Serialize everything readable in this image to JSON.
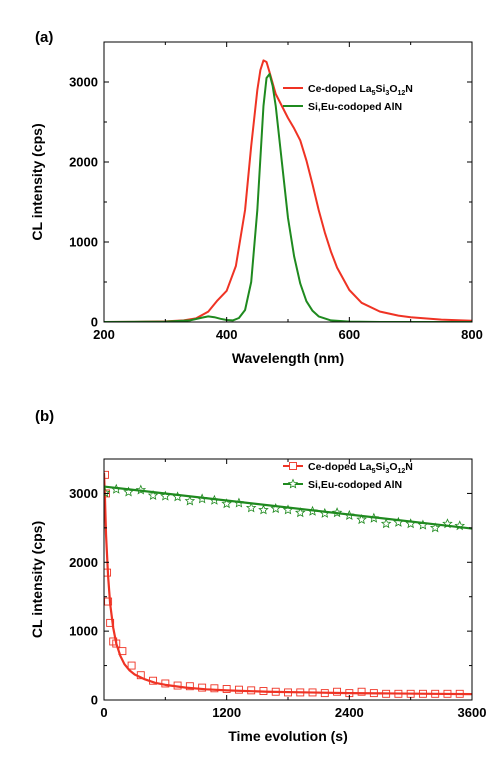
{
  "colors": {
    "red": "#ef3324",
    "green": "#1f8a1f",
    "axis": "#000000"
  },
  "chart_data": [
    {
      "id": "a",
      "panel_label": "(a)",
      "type": "line",
      "xlabel": "Wavelength (nm)",
      "ylabel": "CL intensity (cps)",
      "xlim": [
        200,
        800
      ],
      "ylim": [
        0,
        3500
      ],
      "xticks": [
        200,
        400,
        600,
        800
      ],
      "yticks": [
        0,
        1000,
        2000,
        3000
      ],
      "xtick_labels": [
        "200",
        "400",
        "600",
        "800"
      ],
      "ytick_labels": [
        "0",
        "1000",
        "2000",
        "3000"
      ],
      "grid": false,
      "legend_position": "top-right",
      "series": [
        {
          "name": "Ce-doped La5Si3O12N",
          "legend_parts": [
            {
              "text": "Ce-doped La",
              "sub": false
            },
            {
              "text": "5",
              "sub": true
            },
            {
              "text": "Si",
              "sub": false
            },
            {
              "text": "3",
              "sub": true
            },
            {
              "text": "O",
              "sub": false
            },
            {
              "text": "12",
              "sub": true
            },
            {
              "text": "N",
              "sub": false
            }
          ],
          "color": "red",
          "style": "line",
          "x": [
            200,
            250,
            300,
            330,
            350,
            370,
            385,
            400,
            415,
            430,
            440,
            450,
            455,
            460,
            465,
            470,
            480,
            490,
            500,
            510,
            520,
            530,
            540,
            550,
            560,
            570,
            580,
            600,
            620,
            650,
            680,
            700,
            750,
            800
          ],
          "y": [
            0,
            2,
            8,
            20,
            45,
            130,
            270,
            390,
            700,
            1400,
            2200,
            2900,
            3150,
            3270,
            3250,
            3120,
            2850,
            2700,
            2550,
            2420,
            2270,
            2020,
            1720,
            1400,
            1120,
            880,
            680,
            400,
            240,
            130,
            80,
            60,
            30,
            15
          ]
        },
        {
          "name": "Si,Eu-codoped AlN",
          "legend_parts": [
            {
              "text": "Si,Eu-codoped AlN",
              "sub": false
            }
          ],
          "color": "green",
          "style": "line",
          "x": [
            200,
            300,
            340,
            360,
            370,
            380,
            390,
            400,
            410,
            420,
            430,
            440,
            450,
            460,
            465,
            470,
            475,
            480,
            490,
            500,
            510,
            520,
            530,
            540,
            550,
            570,
            600,
            650,
            800
          ],
          "y": [
            0,
            5,
            20,
            55,
            70,
            60,
            40,
            25,
            20,
            50,
            150,
            500,
            1400,
            2700,
            3050,
            3100,
            2950,
            2700,
            2000,
            1300,
            820,
            480,
            260,
            140,
            70,
            20,
            5,
            0,
            0
          ]
        }
      ]
    },
    {
      "id": "b",
      "panel_label": "(b)",
      "type": "scatter",
      "xlabel": "Time evolution (s)",
      "ylabel": "CL intensity (cps)",
      "xlim": [
        0,
        3600
      ],
      "ylim": [
        0,
        3500
      ],
      "xticks": [
        0,
        1200,
        2400,
        3600
      ],
      "yticks": [
        0,
        1000,
        2000,
        3000
      ],
      "xtick_labels": [
        "0",
        "1200",
        "2400",
        "3600"
      ],
      "ytick_labels": [
        "0",
        "1000",
        "2000",
        "3000"
      ],
      "grid": false,
      "legend_position": "top-right",
      "series": [
        {
          "name": "Ce-doped La5Si3O12N",
          "legend_parts": [
            {
              "text": "Ce-doped La",
              "sub": false
            },
            {
              "text": "5",
              "sub": true
            },
            {
              "text": "Si",
              "sub": false
            },
            {
              "text": "3",
              "sub": true
            },
            {
              "text": "O",
              "sub": false
            },
            {
              "text": "12",
              "sub": true
            },
            {
              "text": "N",
              "sub": false
            }
          ],
          "color": "red",
          "marker": "square",
          "points_x": [
            10,
            20,
            30,
            40,
            60,
            90,
            120,
            180,
            270,
            360,
            480,
            600,
            720,
            840,
            960,
            1080,
            1200,
            1320,
            1440,
            1560,
            1680,
            1800,
            1920,
            2040,
            2160,
            2280,
            2400,
            2520,
            2640,
            2760,
            2880,
            3000,
            3120,
            3240,
            3360,
            3480
          ],
          "points_y": [
            3270,
            3000,
            1850,
            1430,
            1120,
            850,
            820,
            710,
            500,
            360,
            280,
            240,
            210,
            200,
            180,
            170,
            160,
            150,
            140,
            130,
            120,
            110,
            110,
            110,
            100,
            120,
            100,
            120,
            100,
            90,
            90,
            90,
            90,
            90,
            90,
            90
          ],
          "fit_x": [
            0,
            10,
            20,
            40,
            60,
            90,
            120,
            160,
            200,
            250,
            300,
            400,
            500,
            600,
            800,
            1000,
            1200,
            1600,
            2000,
            2400,
            2800,
            3200,
            3600
          ],
          "fit_y": [
            3300,
            2900,
            2400,
            1800,
            1400,
            1050,
            820,
            640,
            520,
            430,
            370,
            300,
            250,
            220,
            180,
            155,
            140,
            120,
            110,
            100,
            95,
            90,
            85
          ]
        },
        {
          "name": "Si,Eu-codoped AlN",
          "legend_parts": [
            {
              "text": "Si,Eu-codoped AlN",
              "sub": false
            }
          ],
          "color": "green",
          "marker": "star",
          "points_x": [
            10,
            120,
            240,
            360,
            480,
            600,
            720,
            840,
            960,
            1080,
            1200,
            1320,
            1440,
            1560,
            1680,
            1800,
            1920,
            2040,
            2160,
            2280,
            2400,
            2520,
            2640,
            2760,
            2880,
            3000,
            3120,
            3240,
            3360,
            3480
          ],
          "points_y": [
            3010,
            3060,
            3020,
            3050,
            2970,
            2960,
            2950,
            2890,
            2920,
            2900,
            2850,
            2860,
            2790,
            2760,
            2780,
            2760,
            2720,
            2740,
            2710,
            2720,
            2680,
            2620,
            2640,
            2560,
            2580,
            2560,
            2540,
            2500,
            2560,
            2530
          ],
          "fit_x": [
            0,
            3600
          ],
          "fit_y": [
            3100,
            2490
          ]
        }
      ]
    }
  ]
}
